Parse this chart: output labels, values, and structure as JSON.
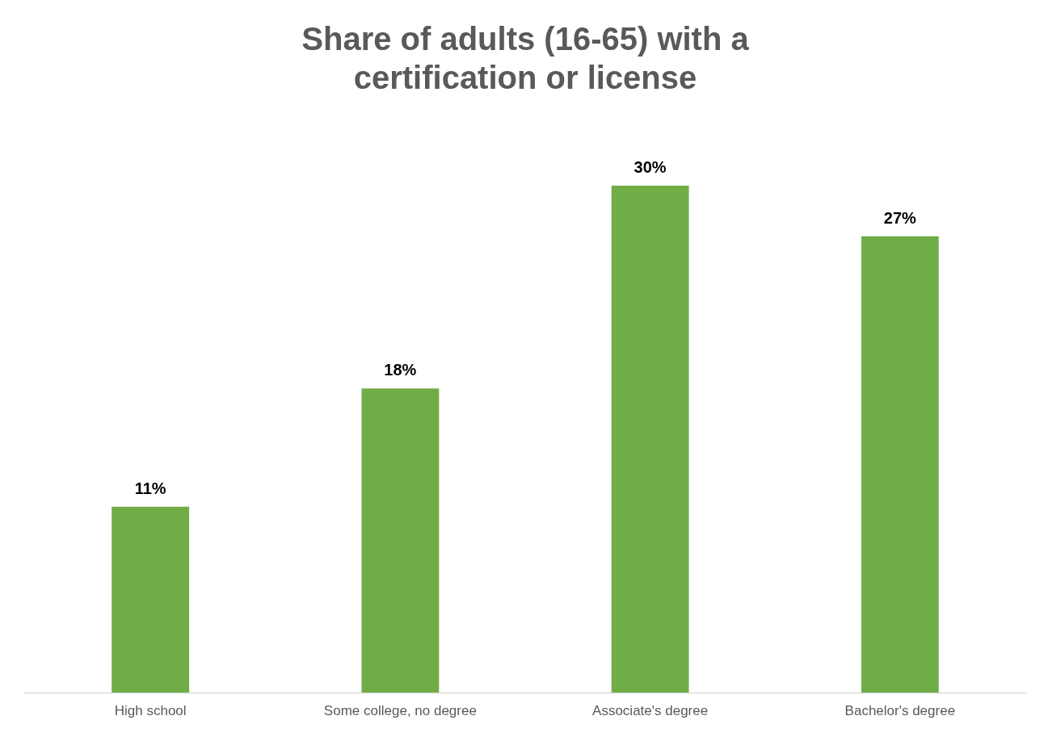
{
  "chart_data": {
    "type": "bar",
    "title": "Share of adults (16-65) with a certification or license",
    "categories": [
      "High school",
      "Some college, no degree",
      "Associate's degree",
      "Bachelor's degree"
    ],
    "values": [
      11,
      18,
      30,
      27
    ],
    "color": "#70ad47",
    "tick_labels": "x",
    "value_labels": [
      "11%",
      "18%",
      "30%",
      "27%"
    ]
  }
}
